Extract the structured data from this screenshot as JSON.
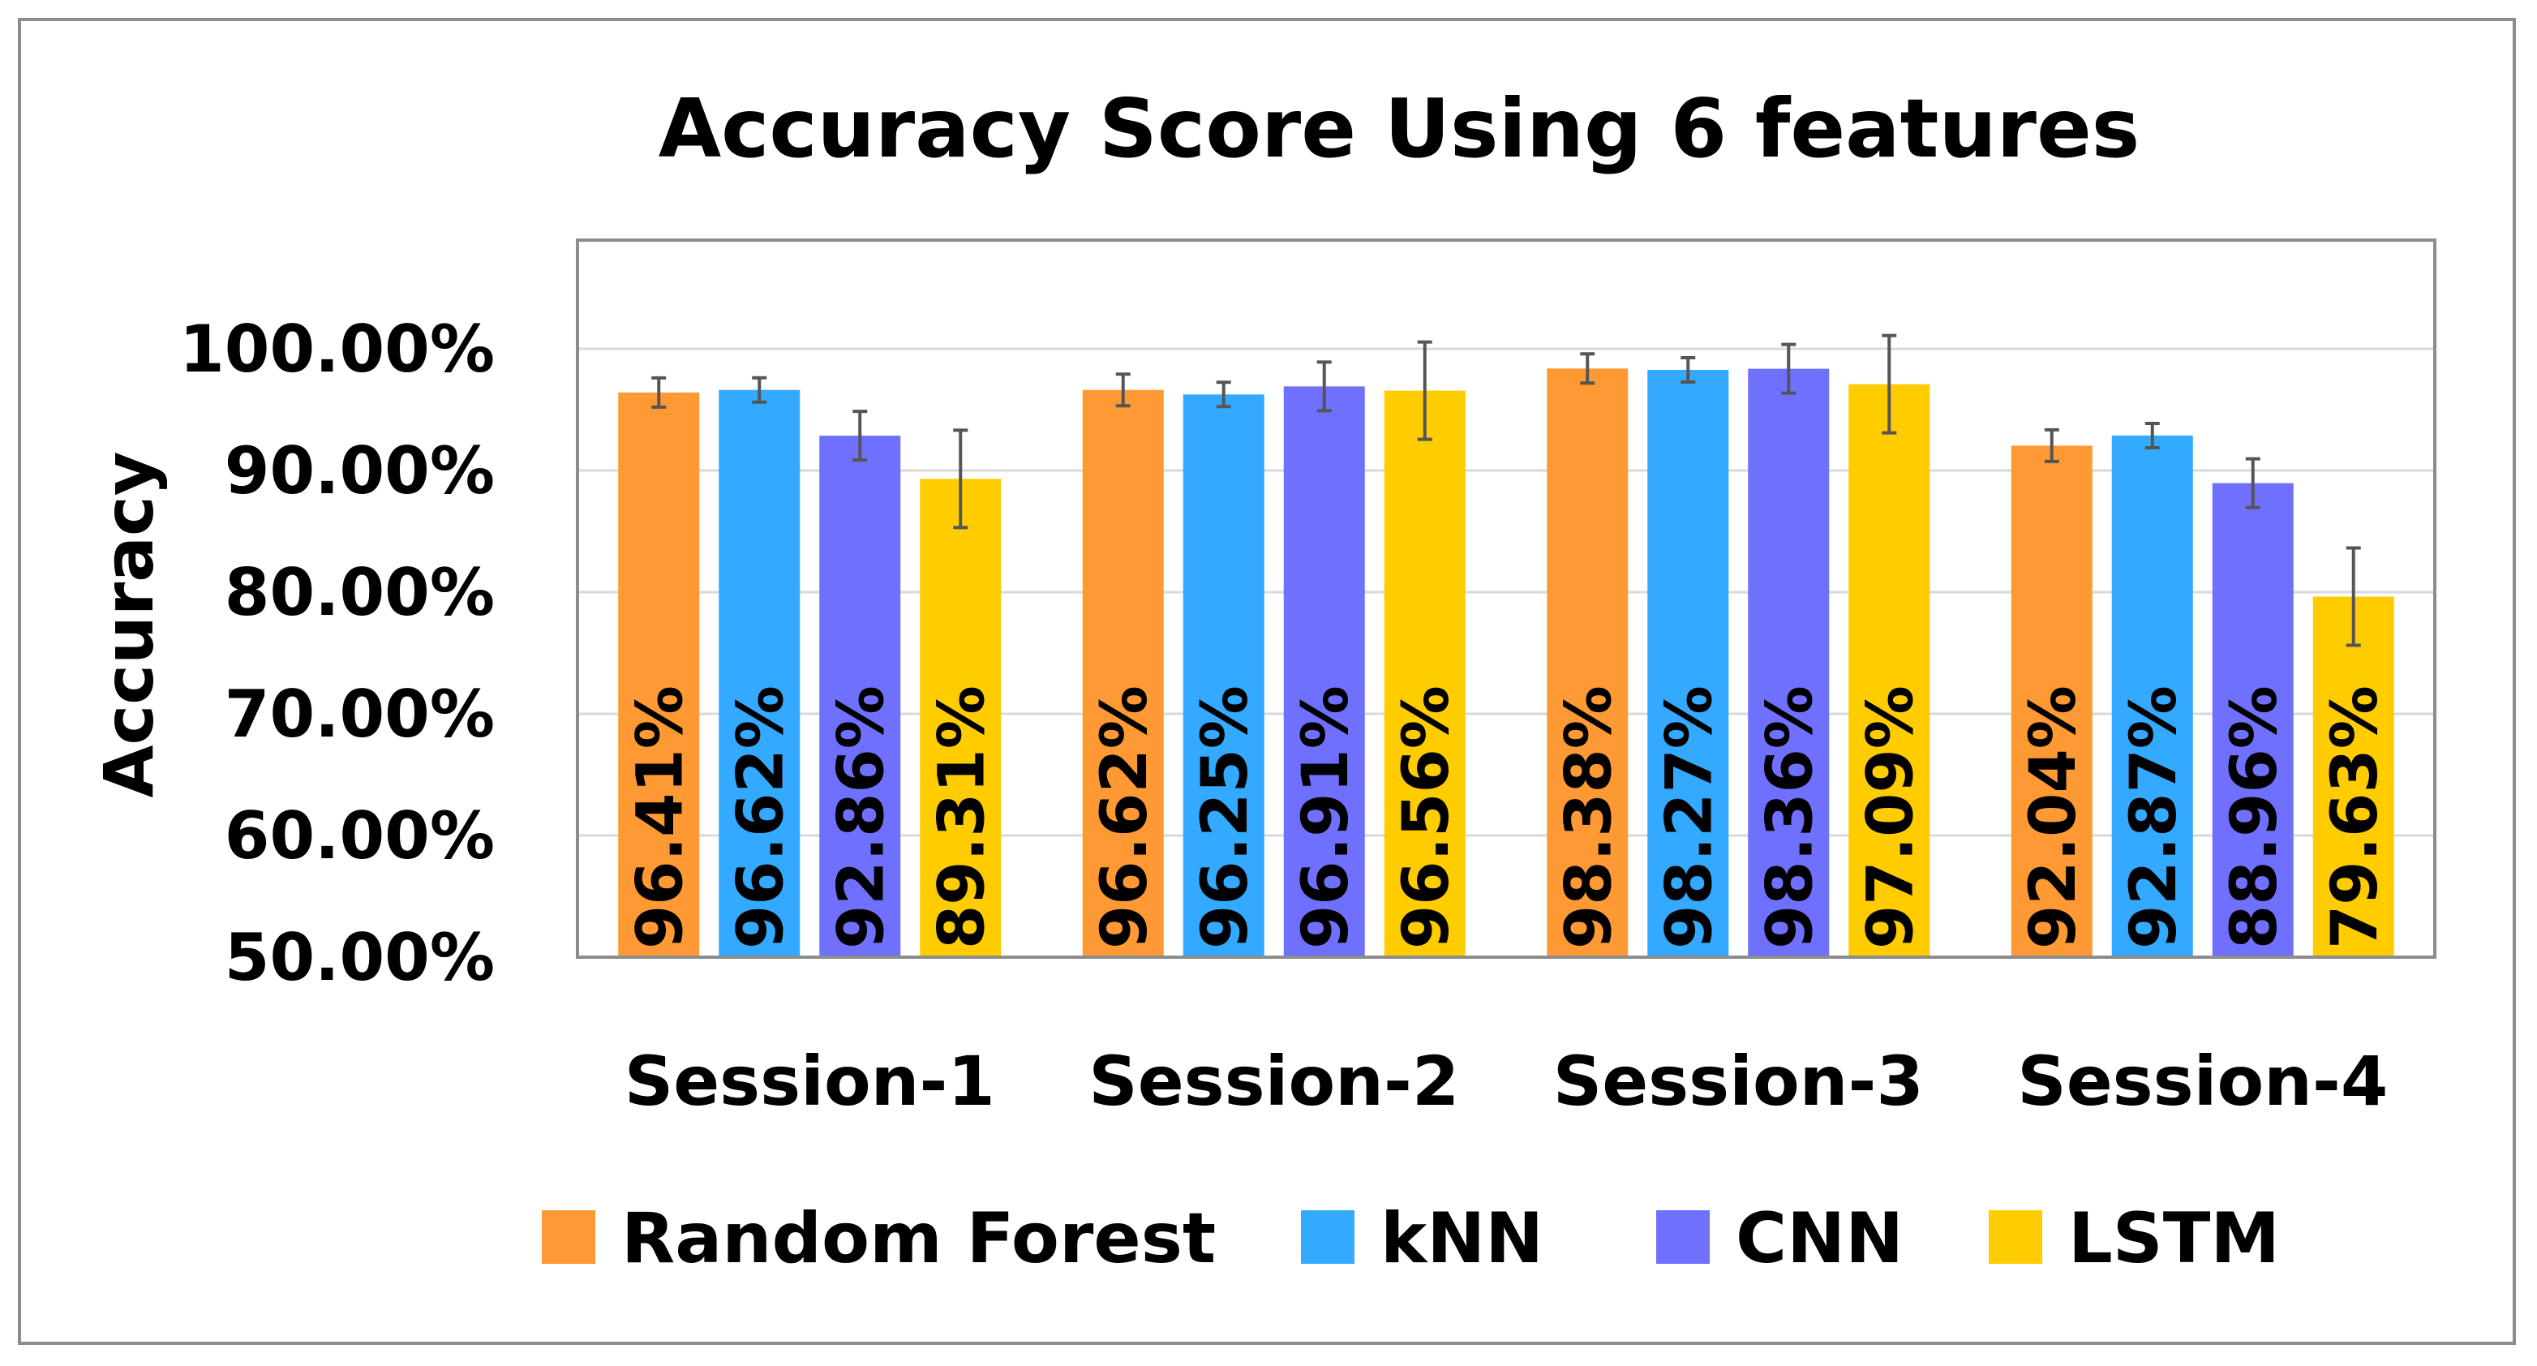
{
  "chart_data": {
    "type": "bar",
    "title": "Accuracy Score Using 6 features",
    "xlabel": "",
    "ylabel": "Accuracy",
    "ylim": [
      50,
      100
    ],
    "y_ticks": [
      "50.00%",
      "60.00%",
      "70.00%",
      "80.00%",
      "90.00%",
      "100.00%"
    ],
    "grid": true,
    "legend_position": "bottom",
    "categories": [
      "Session-1",
      "Session-2",
      "Session-3",
      "Session-4"
    ],
    "series": [
      {
        "name": "Random Forest",
        "color": "#ff9933",
        "values": [
          96.41,
          96.62,
          98.38,
          92.04
        ],
        "labels": [
          "96.41%",
          "96.62%",
          "98.38%",
          "92.04%"
        ],
        "errors": [
          1.2,
          1.3,
          1.2,
          1.3
        ]
      },
      {
        "name": "kNN",
        "color": "#33aaff",
        "values": [
          96.62,
          96.25,
          98.27,
          92.87
        ],
        "labels": [
          "96.62%",
          "96.25%",
          "98.27%",
          "92.87%"
        ],
        "errors": [
          1.0,
          1.0,
          1.0,
          1.0
        ]
      },
      {
        "name": "CNN",
        "color": "#7070ff",
        "values": [
          92.86,
          96.91,
          98.36,
          88.96
        ],
        "labels": [
          "92.86%",
          "96.91%",
          "98.36%",
          "88.96%"
        ],
        "errors": [
          2.0,
          2.0,
          2.0,
          2.0
        ]
      },
      {
        "name": "LSTM",
        "color": "#ffcc00",
        "values": [
          89.31,
          96.56,
          97.09,
          79.63
        ],
        "labels": [
          "89.31%",
          "96.56%",
          "97.09%",
          "79.63%"
        ],
        "errors": [
          4.0,
          4.0,
          4.0,
          4.0
        ]
      }
    ]
  }
}
